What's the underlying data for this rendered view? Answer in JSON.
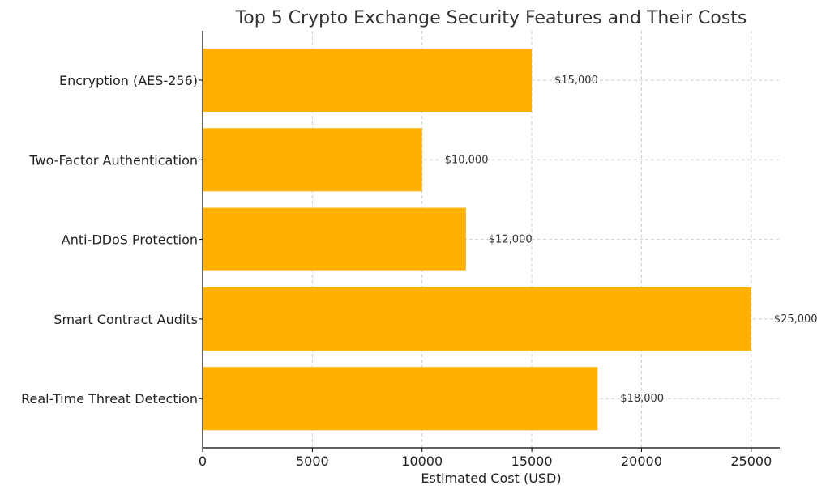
{
  "chart_data": {
    "type": "bar",
    "orientation": "horizontal",
    "title": "Top 5 Crypto Exchange Security Features and Their Costs",
    "xlabel": "Estimated Cost (USD)",
    "ylabel": "",
    "categories": [
      "Encryption (AES-256)",
      "Two-Factor Authentication",
      "Anti-DDoS Protection",
      "Smart Contract Audits",
      "Real-Time Threat Detection"
    ],
    "values": [
      15000,
      10000,
      12000,
      25000,
      18000
    ],
    "data_labels": [
      "$15,000",
      "$10,000",
      "$12,000",
      "$25,000",
      "$18,000"
    ],
    "xlim": [
      0,
      26300
    ],
    "xticks": [
      0,
      5000,
      10000,
      15000,
      20000,
      25000
    ],
    "xtick_labels": [
      "0",
      "5000",
      "10000",
      "15000",
      "20000",
      "25000"
    ],
    "grid": true,
    "bar_color": "#FFB000"
  }
}
